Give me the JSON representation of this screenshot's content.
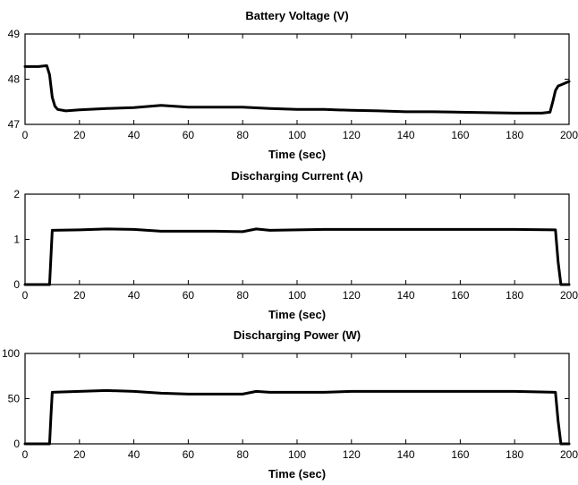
{
  "chart_data": [
    {
      "type": "line",
      "title": "Battery Voltage (V)",
      "xlabel": "Time (sec)",
      "ylabel": "",
      "xlim": [
        0,
        200
      ],
      "ylim": [
        47,
        49
      ],
      "xticks": [
        0,
        20,
        40,
        60,
        80,
        100,
        120,
        140,
        160,
        180,
        200
      ],
      "yticks": [
        47,
        48,
        49
      ],
      "grid": false,
      "series": [
        {
          "color": "#000000",
          "points": [
            [
              0,
              48.28
            ],
            [
              5,
              48.28
            ],
            [
              8,
              48.3
            ],
            [
              9,
              48.1
            ],
            [
              10,
              47.6
            ],
            [
              11,
              47.4
            ],
            [
              12,
              47.33
            ],
            [
              15,
              47.3
            ],
            [
              20,
              47.32
            ],
            [
              30,
              47.35
            ],
            [
              40,
              47.37
            ],
            [
              50,
              47.42
            ],
            [
              60,
              47.38
            ],
            [
              70,
              47.38
            ],
            [
              80,
              47.38
            ],
            [
              90,
              47.35
            ],
            [
              100,
              47.33
            ],
            [
              110,
              47.33
            ],
            [
              120,
              47.31
            ],
            [
              130,
              47.3
            ],
            [
              140,
              47.28
            ],
            [
              150,
              47.28
            ],
            [
              160,
              47.27
            ],
            [
              170,
              47.26
            ],
            [
              180,
              47.25
            ],
            [
              190,
              47.25
            ],
            [
              193,
              47.27
            ],
            [
              194,
              47.5
            ],
            [
              195,
              47.75
            ],
            [
              196,
              47.85
            ],
            [
              198,
              47.9
            ],
            [
              200,
              47.95
            ]
          ]
        }
      ]
    },
    {
      "type": "line",
      "title": "Discharging Current (A)",
      "xlabel": "Time (sec)",
      "ylabel": "",
      "xlim": [
        0,
        200
      ],
      "ylim": [
        0,
        2
      ],
      "xticks": [
        0,
        20,
        40,
        60,
        80,
        100,
        120,
        140,
        160,
        180,
        200
      ],
      "yticks": [
        0,
        1,
        2
      ],
      "grid": false,
      "series": [
        {
          "color": "#000000",
          "points": [
            [
              0,
              0
            ],
            [
              9,
              0
            ],
            [
              9.5,
              0.6
            ],
            [
              10,
              1.2
            ],
            [
              20,
              1.21
            ],
            [
              30,
              1.23
            ],
            [
              40,
              1.22
            ],
            [
              50,
              1.18
            ],
            [
              60,
              1.18
            ],
            [
              70,
              1.18
            ],
            [
              80,
              1.17
            ],
            [
              85,
              1.23
            ],
            [
              90,
              1.2
            ],
            [
              100,
              1.21
            ],
            [
              110,
              1.22
            ],
            [
              120,
              1.22
            ],
            [
              130,
              1.22
            ],
            [
              140,
              1.22
            ],
            [
              150,
              1.22
            ],
            [
              160,
              1.22
            ],
            [
              170,
              1.22
            ],
            [
              180,
              1.22
            ],
            [
              195,
              1.21
            ],
            [
              196,
              0.5
            ],
            [
              197,
              0
            ],
            [
              200,
              0
            ]
          ]
        }
      ]
    },
    {
      "type": "line",
      "title": "Discharging Power (W)",
      "xlabel": "Time (sec)",
      "ylabel": "",
      "xlim": [
        0,
        200
      ],
      "ylim": [
        0,
        100
      ],
      "xticks": [
        0,
        20,
        40,
        60,
        80,
        100,
        120,
        140,
        160,
        180,
        200
      ],
      "yticks": [
        0,
        50,
        100
      ],
      "grid": false,
      "series": [
        {
          "color": "#000000",
          "points": [
            [
              0,
              0
            ],
            [
              9,
              0
            ],
            [
              9.5,
              30
            ],
            [
              10,
              57
            ],
            [
              20,
              58
            ],
            [
              30,
              59
            ],
            [
              40,
              58
            ],
            [
              50,
              56
            ],
            [
              60,
              55
            ],
            [
              70,
              55
            ],
            [
              80,
              55
            ],
            [
              85,
              58
            ],
            [
              90,
              57
            ],
            [
              100,
              57
            ],
            [
              110,
              57
            ],
            [
              120,
              58
            ],
            [
              130,
              58
            ],
            [
              140,
              58
            ],
            [
              150,
              58
            ],
            [
              160,
              58
            ],
            [
              170,
              58
            ],
            [
              180,
              58
            ],
            [
              195,
              57
            ],
            [
              196,
              25
            ],
            [
              197,
              0
            ],
            [
              200,
              0
            ]
          ]
        }
      ]
    }
  ]
}
